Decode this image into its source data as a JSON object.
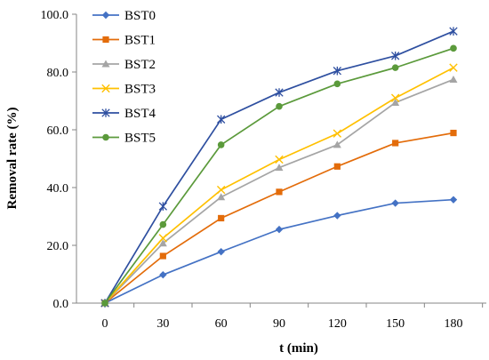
{
  "chart_data": {
    "type": "line",
    "title": "",
    "xlabel": "t (min)",
    "ylabel": "Removal rate (%)",
    "x": [
      0,
      30,
      60,
      90,
      120,
      150,
      180
    ],
    "x_tick_labels": [
      "0",
      "30",
      "60",
      "90",
      "120",
      "150",
      "180"
    ],
    "ylim": [
      0,
      100
    ],
    "y_tick_labels": [
      "0.0",
      "20.0",
      "40.0",
      "60.0",
      "80.0",
      "100.0"
    ],
    "y_ticks": [
      0,
      20,
      40,
      60,
      80,
      100
    ],
    "grid": false,
    "legend_position": "top-left",
    "series": [
      {
        "name": "BST0",
        "color": "#4472C4",
        "marker": "diamond",
        "values": [
          0,
          9.8,
          17.8,
          25.5,
          30.3,
          34.6,
          35.8
        ]
      },
      {
        "name": "BST1",
        "color": "#E36C0A",
        "marker": "square",
        "values": [
          0,
          16.3,
          29.4,
          38.5,
          47.3,
          55.4,
          58.9
        ]
      },
      {
        "name": "BST2",
        "color": "#A5A5A5",
        "marker": "triangle",
        "values": [
          0,
          20.7,
          36.7,
          46.9,
          54.8,
          69.4,
          77.4
        ]
      },
      {
        "name": "BST3",
        "color": "#FFC000",
        "marker": "x",
        "values": [
          0,
          22.5,
          39.2,
          49.7,
          58.7,
          71.0,
          81.5
        ]
      },
      {
        "name": "BST4",
        "color": "#2E4FA0",
        "marker": "star",
        "values": [
          0,
          33.5,
          63.6,
          72.9,
          80.4,
          85.6,
          94.1
        ]
      },
      {
        "name": "BST5",
        "color": "#5B9A3B",
        "marker": "circle",
        "values": [
          0,
          27.2,
          54.8,
          68.1,
          75.9,
          81.5,
          88.2
        ]
      }
    ]
  }
}
